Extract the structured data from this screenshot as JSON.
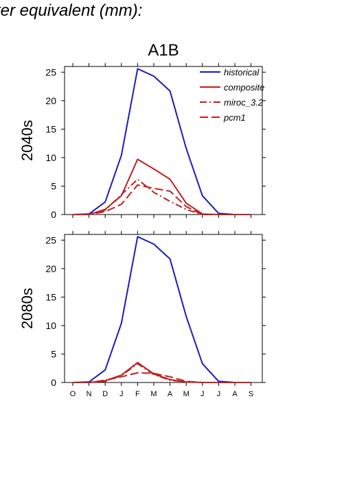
{
  "header": {
    "title": "ter equivalent (mm):"
  },
  "chart_data": {
    "type": "line",
    "title": "A1B",
    "categories": [
      "O",
      "N",
      "D",
      "J",
      "F",
      "M",
      "A",
      "M",
      "J",
      "J",
      "A",
      "S"
    ],
    "ylim": [
      0,
      26
    ],
    "yticks": [
      0,
      5,
      10,
      15,
      20,
      25
    ],
    "grid": false,
    "legend": "top-right",
    "colors": {
      "historical": "#1a1abf",
      "future": "#c01e1e"
    },
    "panels": [
      {
        "ylabel": "2040s",
        "series": [
          {
            "name": "historical",
            "style": "solid",
            "color": "#1a1abf",
            "values": [
              0,
              0.1,
              2.2,
              10.4,
              25.6,
              24.3,
              21.7,
              11.6,
              3.3,
              0.2,
              0,
              0
            ]
          },
          {
            "name": "composite",
            "style": "solid",
            "color": "#c01e1e",
            "values": [
              0,
              0,
              0.9,
              3.3,
              9.7,
              8.0,
              6.2,
              2.0,
              0.1,
              0,
              0,
              0
            ]
          },
          {
            "name": "miroc_3.2",
            "style": "dashdot",
            "color": "#c01e1e",
            "values": [
              0,
              0,
              0.8,
              3.5,
              6.2,
              3.9,
              2.3,
              0.9,
              0,
              0,
              0,
              0
            ]
          },
          {
            "name": "pcm1",
            "style": "dashed",
            "color": "#c01e1e",
            "values": [
              0,
              0,
              0.5,
              1.8,
              5.2,
              4.6,
              4.1,
              1.4,
              0,
              0,
              0,
              0
            ]
          }
        ]
      },
      {
        "ylabel": "2080s",
        "series": [
          {
            "name": "historical",
            "style": "solid",
            "color": "#1a1abf",
            "values": [
              0,
              0.1,
              2.2,
              10.4,
              25.6,
              24.3,
              21.7,
              11.6,
              3.3,
              0.2,
              0,
              0
            ]
          },
          {
            "name": "composite",
            "style": "solid",
            "color": "#c01e1e",
            "values": [
              0,
              0,
              0.3,
              1.3,
              3.5,
              1.5,
              0.5,
              0.1,
              0,
              0,
              0,
              0
            ]
          },
          {
            "name": "miroc_3.2",
            "style": "dashdot",
            "color": "#c01e1e",
            "values": [
              0,
              0,
              0.2,
              1.2,
              3.3,
              1.4,
              0.4,
              0.1,
              0,
              0,
              0,
              0
            ]
          },
          {
            "name": "pcm1",
            "style": "dashed",
            "color": "#c01e1e",
            "values": [
              0,
              0,
              0.4,
              1.0,
              1.7,
              1.6,
              1.0,
              0.2,
              0,
              0,
              0,
              0
            ]
          }
        ]
      }
    ]
  }
}
